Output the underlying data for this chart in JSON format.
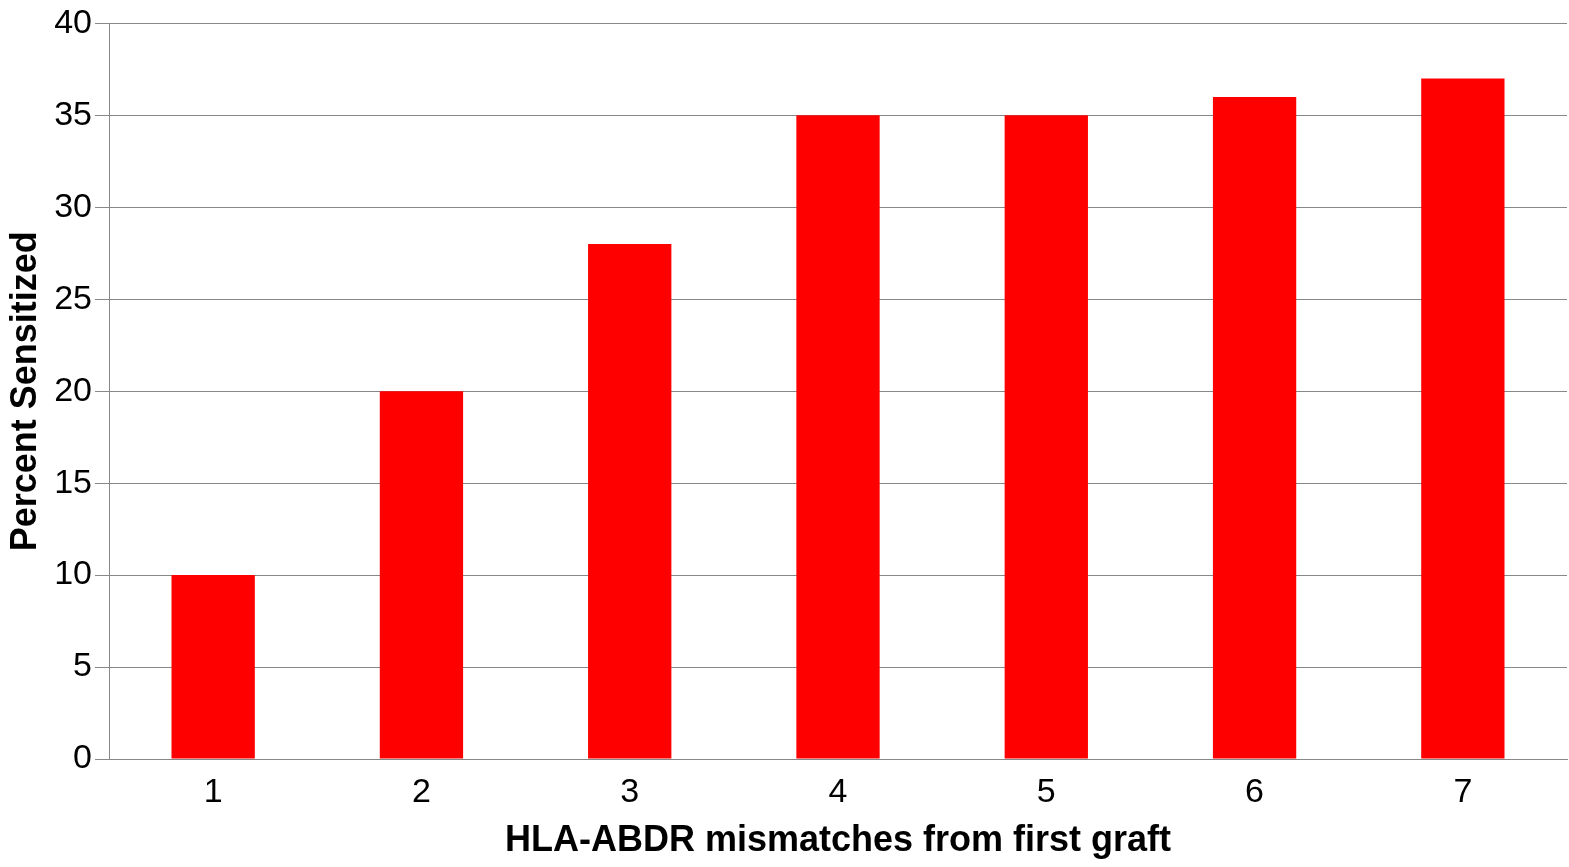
{
  "chart_data": {
    "type": "bar",
    "xlabel": "HLA-ABDR mismatches from first graft",
    "ylabel": "Percent Sensitized",
    "categories": [
      "1",
      "2",
      "3",
      "4",
      "5",
      "6",
      "7"
    ],
    "values": [
      10,
      20,
      28,
      35,
      35,
      36,
      37
    ],
    "color": "#ff0000",
    "ylim": [
      0,
      40
    ],
    "yticks": [
      0,
      5,
      10,
      15,
      20,
      25,
      30,
      35,
      40
    ],
    "grid": "y",
    "legend": false
  }
}
